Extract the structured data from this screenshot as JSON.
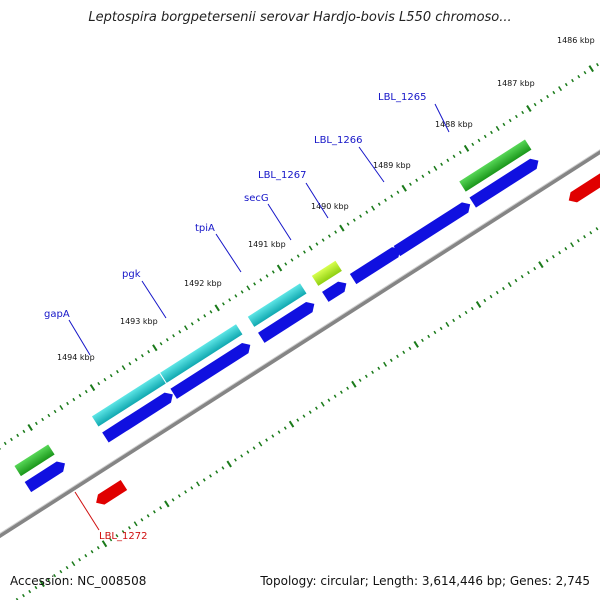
{
  "title": "Leptospira borgpetersenii serovar Hardjo-bovis L550 chromoso...",
  "footer": {
    "accession": "Accession: NC_008508",
    "topology": "Topology: circular; Length: 3,614,446 bp; Genes: 2,745"
  },
  "colors": {
    "backbone": "#7a7a7a",
    "ticks": "#1a7a1a",
    "plus_gene_label": "#1515c8",
    "minus_gene_label": "#d01010",
    "cds": "#1010e0",
    "minus_cds": "#e00000"
  },
  "ticks": [
    {
      "label": "1486 kbp"
    },
    {
      "label": "1487 kbp"
    },
    {
      "label": "1488 kbp"
    },
    {
      "label": "1489 kbp"
    },
    {
      "label": "1490 kbp"
    },
    {
      "label": "1491 kbp"
    },
    {
      "label": "1492 kbp"
    },
    {
      "label": "1493 kbp"
    },
    {
      "label": "1494 kbp"
    }
  ],
  "gene_labels": [
    {
      "name": "LBL_1265",
      "strand": "+"
    },
    {
      "name": "LBL_1266",
      "strand": "+"
    },
    {
      "name": "LBL_1267",
      "strand": "+"
    },
    {
      "name": "secG",
      "strand": "+"
    },
    {
      "name": "tpiA",
      "strand": "+"
    },
    {
      "name": "pgk",
      "strand": "+"
    },
    {
      "name": "gapA",
      "strand": "+"
    },
    {
      "name": "LBL_1272",
      "strand": "-"
    }
  ]
}
